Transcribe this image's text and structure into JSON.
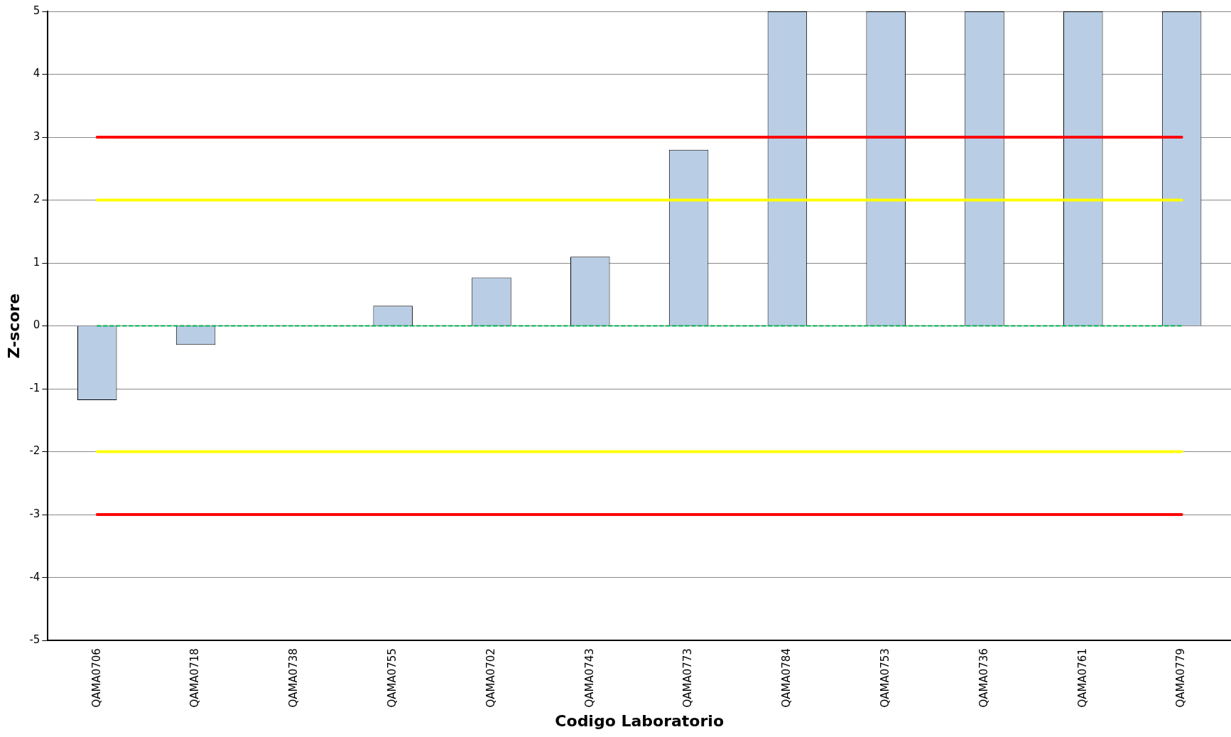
{
  "chart_data": {
    "type": "bar",
    "xlabel": "Codigo Laboratorio",
    "ylabel": "Z-score",
    "categories": [
      "QAMA0706",
      "QAMA0718",
      "QAMA0738",
      "QAMA0755",
      "QAMA0702",
      "QAMA0743",
      "QAMA0773",
      "QAMA0784",
      "QAMA0753",
      "QAMA0736",
      "QAMA0761",
      "QAMA0779"
    ],
    "values": [
      -1.18,
      -0.3,
      null,
      0.32,
      0.77,
      1.1,
      2.8,
      5,
      5,
      5,
      5,
      5
    ],
    "color": "#b9cde5",
    "ylim": [
      -5,
      5
    ],
    "yticks": [
      -5,
      -4,
      -3,
      -2,
      -1,
      0,
      1,
      2,
      3,
      4,
      5
    ],
    "grid": "y",
    "legend": false,
    "ref_lines": [
      {
        "axis": "y",
        "value": 3,
        "color": "#ff0000"
      },
      {
        "axis": "y",
        "value": 2,
        "color": "#ffff00"
      },
      {
        "axis": "y",
        "value": 0,
        "color": "#00b050",
        "line_style": "dashed"
      },
      {
        "axis": "y",
        "value": -2,
        "color": "#ffff00"
      },
      {
        "axis": "y",
        "value": -3,
        "color": "#ff0000"
      }
    ]
  }
}
